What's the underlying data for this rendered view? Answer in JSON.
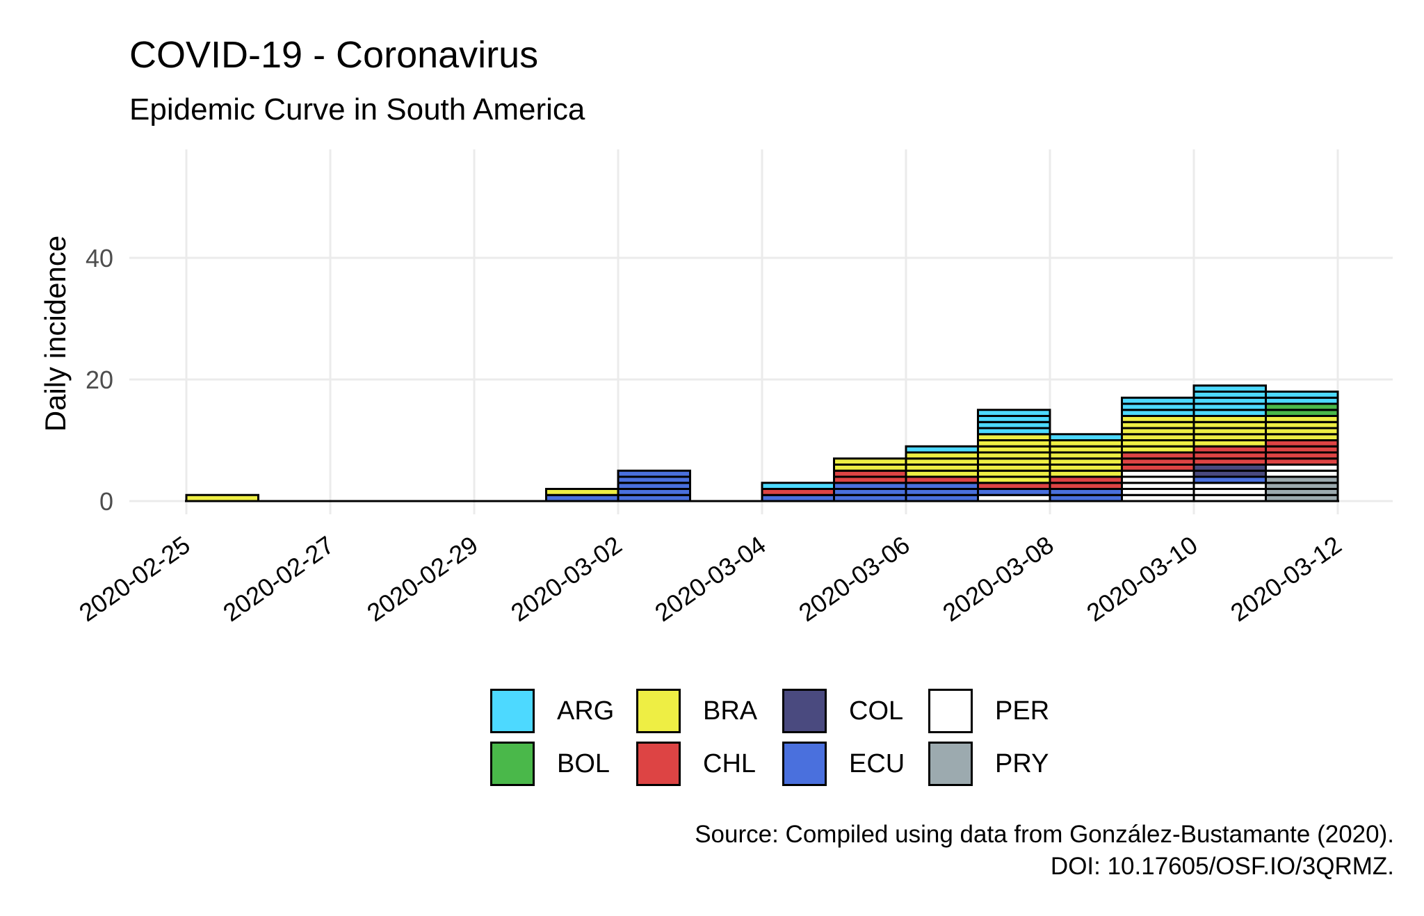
{
  "chart_data": {
    "type": "bar",
    "title": "COVID-19 - Coronavirus",
    "subtitle": "Epidemic Curve in South America",
    "xlabel": "",
    "ylabel": "Daily incidence",
    "caption_lines": [
      "Source: Compiled using data from González-Bustamante (2020).",
      "DOI: 10.17605/OSF.IO/3QRMZ."
    ],
    "stacked": true,
    "x_ticks": [
      "2020-02-25",
      "2020-02-27",
      "2020-02-29",
      "2020-03-02",
      "2020-03-04",
      "2020-03-06",
      "2020-03-08",
      "2020-03-10",
      "2020-03-12"
    ],
    "y_ticks": [
      0,
      20,
      40
    ],
    "ylim": [
      0,
      56
    ],
    "grid": true,
    "legend_position": "bottom",
    "categories": [
      "2020-02-25",
      "2020-02-26",
      "2020-02-27",
      "2020-02-28",
      "2020-02-29",
      "2020-03-01",
      "2020-03-02",
      "2020-03-03",
      "2020-03-04",
      "2020-03-05",
      "2020-03-06",
      "2020-03-07",
      "2020-03-08",
      "2020-03-09",
      "2020-03-10",
      "2020-03-11"
    ],
    "stack_order": [
      "PRY",
      "PER",
      "ECU",
      "COL",
      "CHL",
      "BRA",
      "BOL",
      "ARG"
    ],
    "series": [
      {
        "name": "ARG",
        "color": "#4dd9ff",
        "values": [
          0,
          0,
          0,
          0,
          0,
          0,
          0,
          0,
          1,
          0,
          1,
          4,
          1,
          3,
          5,
          2
        ]
      },
      {
        "name": "BOL",
        "color": "#4ab84a",
        "values": [
          0,
          0,
          0,
          0,
          0,
          0,
          0,
          0,
          0,
          0,
          0,
          0,
          0,
          0,
          0,
          2
        ]
      },
      {
        "name": "BRA",
        "color": "#eeee44",
        "values": [
          1,
          0,
          0,
          0,
          0,
          1,
          0,
          0,
          0,
          2,
          4,
          8,
          6,
          6,
          5,
          4
        ]
      },
      {
        "name": "CHL",
        "color": "#dd4444",
        "values": [
          0,
          0,
          0,
          0,
          0,
          0,
          0,
          0,
          1,
          2,
          1,
          1,
          2,
          3,
          3,
          4
        ]
      },
      {
        "name": "COL",
        "color": "#4a4a7f",
        "values": [
          0,
          0,
          0,
          0,
          0,
          0,
          0,
          0,
          0,
          0,
          0,
          0,
          0,
          0,
          2,
          0
        ]
      },
      {
        "name": "ECU",
        "color": "#4a70dd",
        "values": [
          0,
          0,
          0,
          0,
          0,
          1,
          5,
          0,
          1,
          3,
          3,
          1,
          2,
          0,
          1,
          0
        ]
      },
      {
        "name": "PER",
        "color": "#ffffff",
        "values": [
          0,
          0,
          0,
          0,
          0,
          0,
          0,
          0,
          0,
          0,
          0,
          1,
          0,
          5,
          3,
          2
        ]
      },
      {
        "name": "PRY",
        "color": "#9caaaf",
        "values": [
          0,
          0,
          0,
          0,
          0,
          0,
          0,
          0,
          0,
          0,
          0,
          0,
          0,
          0,
          0,
          4
        ]
      }
    ]
  }
}
